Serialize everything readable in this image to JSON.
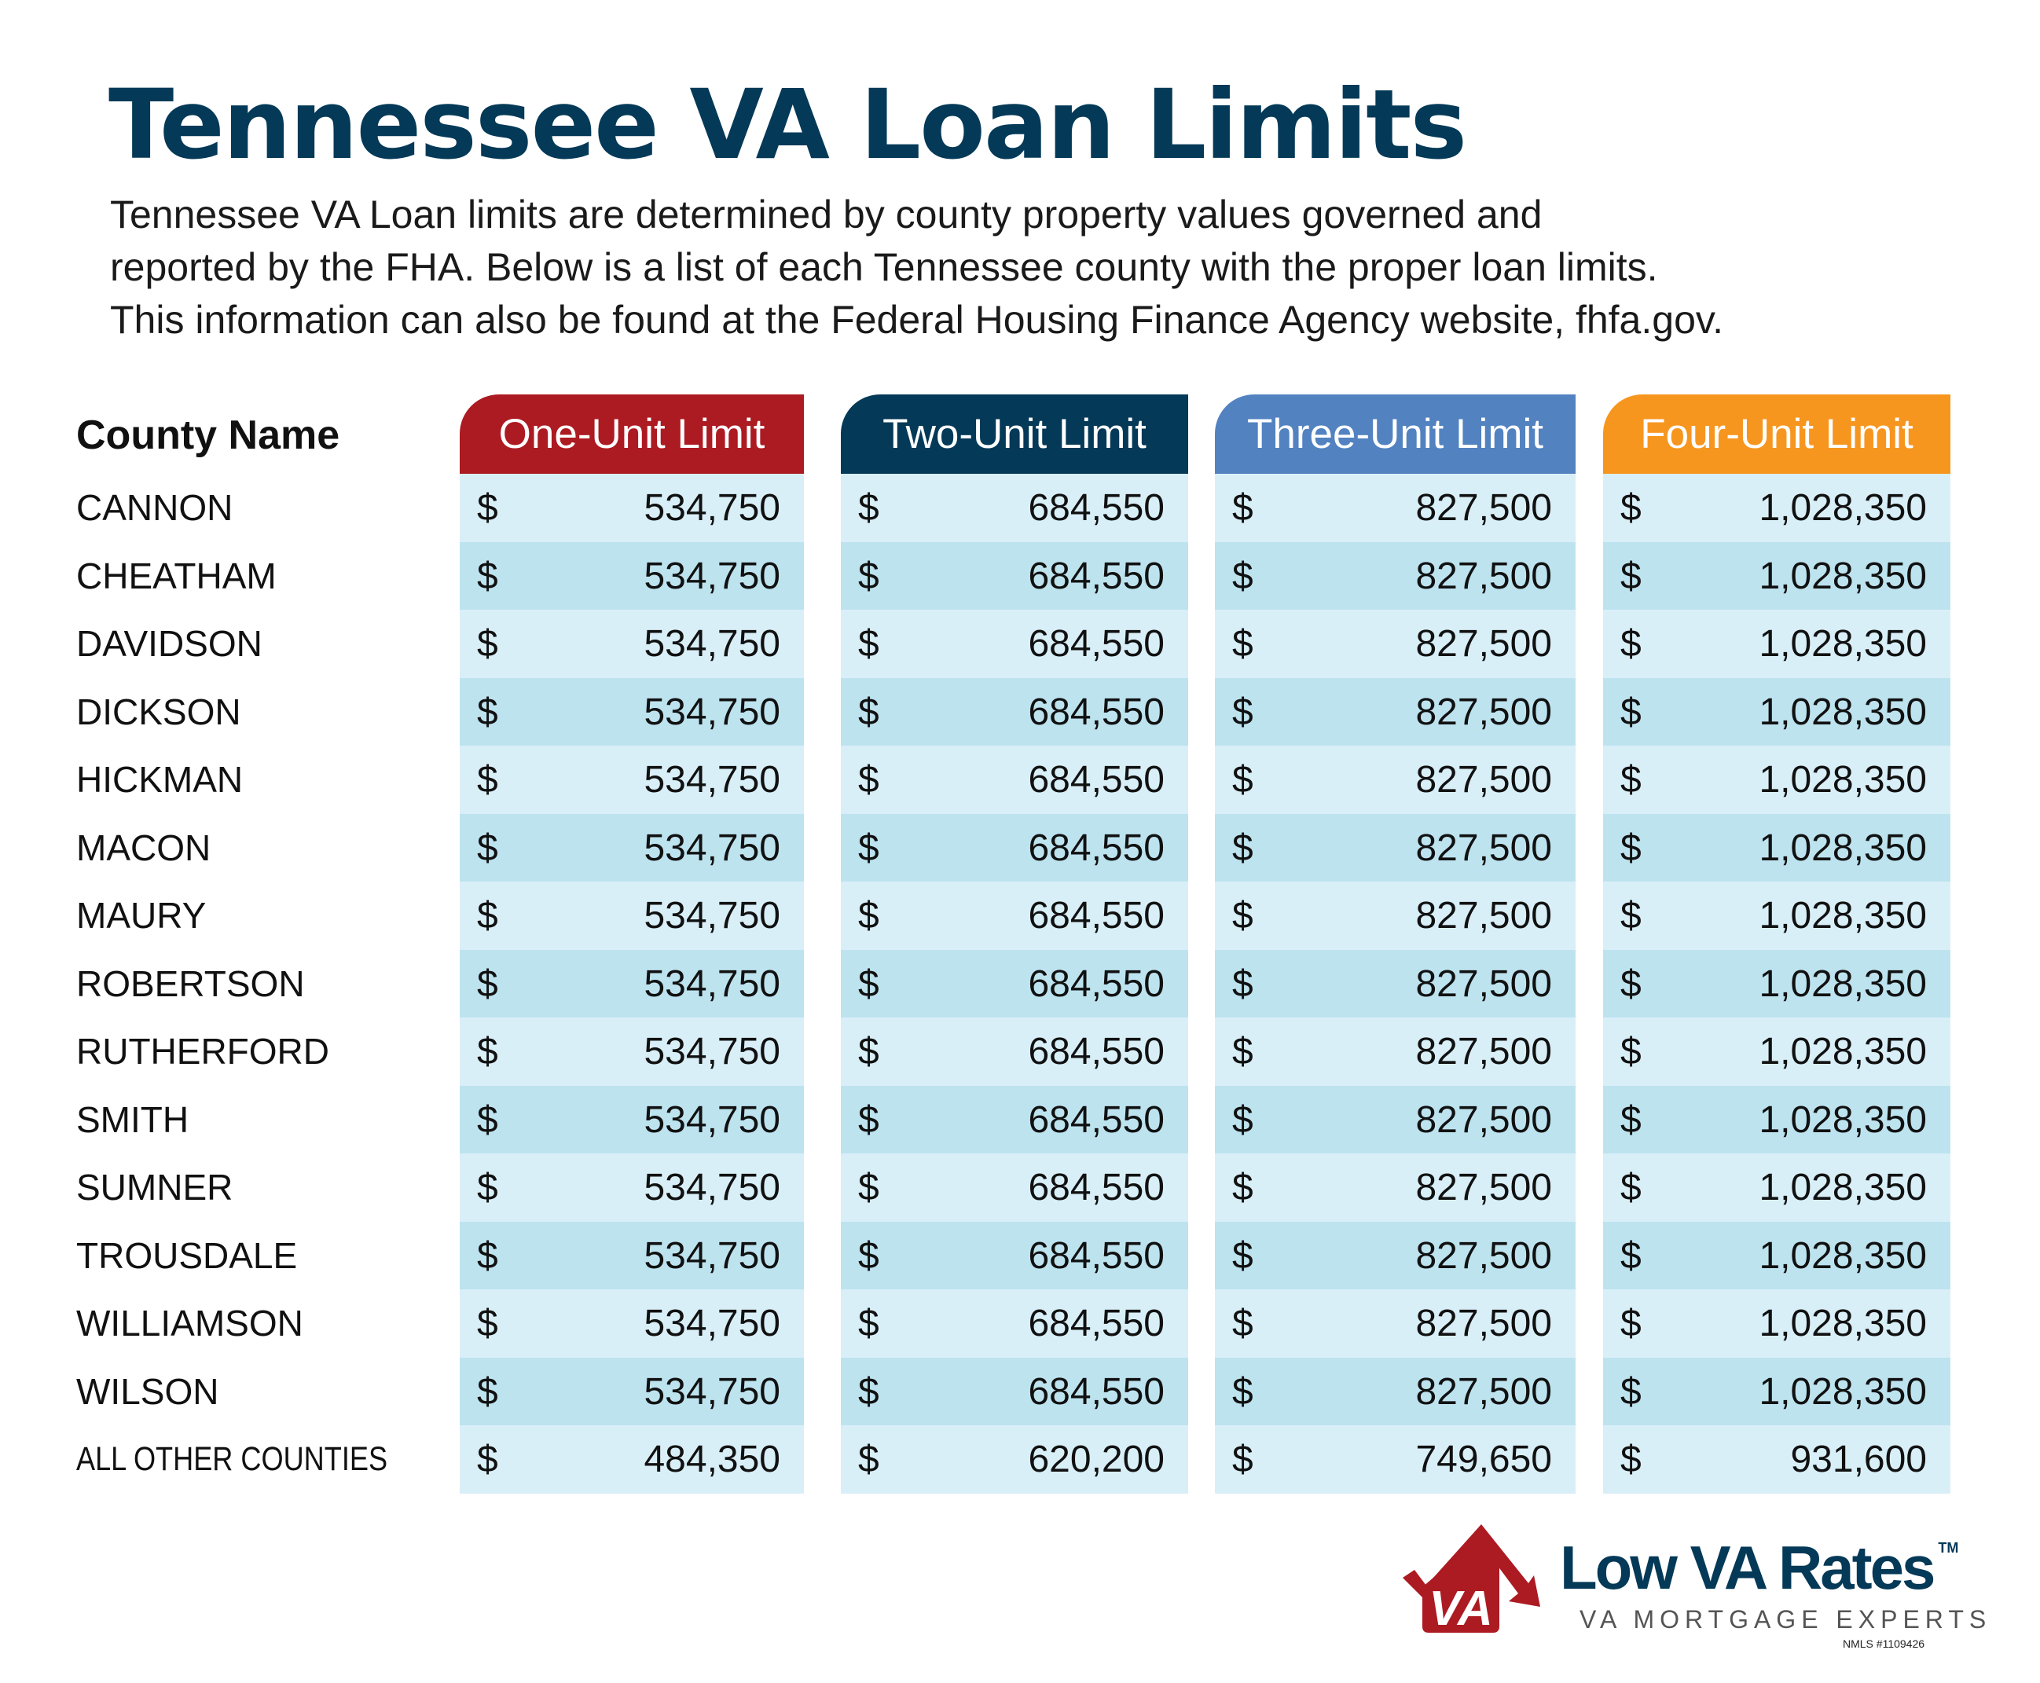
{
  "title": "Tennessee VA Loan Limits",
  "subtitle_lines": [
    "Tennessee VA Loan limits are determined by county property values governed and",
    "reported by the FHA. Below is a list of each Tennessee county with the proper loan limits.",
    "This information can also be found at the Federal Housing Finance Agency website, fhfa.gov."
  ],
  "table": {
    "county_header": "County Name",
    "columns": [
      {
        "label": "One-Unit Limit",
        "color": "#ac1a22"
      },
      {
        "label": "Two-Unit Limit",
        "color": "#043957"
      },
      {
        "label": "Three-Unit Limit",
        "color": "#5282c0"
      },
      {
        "label": "Four-Unit Limit",
        "color": "#f7961f"
      }
    ],
    "currency": "$",
    "row_colors": [
      "#d9eff8",
      "#bde3ef"
    ],
    "rows": [
      {
        "county": "CANNON",
        "values": [
          "534,750",
          "684,550",
          "827,500",
          "1,028,350"
        ]
      },
      {
        "county": "CHEATHAM",
        "values": [
          "534,750",
          "684,550",
          "827,500",
          "1,028,350"
        ]
      },
      {
        "county": "DAVIDSON",
        "values": [
          "534,750",
          "684,550",
          "827,500",
          "1,028,350"
        ]
      },
      {
        "county": "DICKSON",
        "values": [
          "534,750",
          "684,550",
          "827,500",
          "1,028,350"
        ]
      },
      {
        "county": "HICKMAN",
        "values": [
          "534,750",
          "684,550",
          "827,500",
          "1,028,350"
        ]
      },
      {
        "county": "MACON",
        "values": [
          "534,750",
          "684,550",
          "827,500",
          "1,028,350"
        ]
      },
      {
        "county": "MAURY",
        "values": [
          "534,750",
          "684,550",
          "827,500",
          "1,028,350"
        ]
      },
      {
        "county": "ROBERTSON",
        "values": [
          "534,750",
          "684,550",
          "827,500",
          "1,028,350"
        ]
      },
      {
        "county": "RUTHERFORD",
        "values": [
          "534,750",
          "684,550",
          "827,500",
          "1,028,350"
        ]
      },
      {
        "county": "SMITH",
        "values": [
          "534,750",
          "684,550",
          "827,500",
          "1,028,350"
        ]
      },
      {
        "county": "SUMNER",
        "values": [
          "534,750",
          "684,550",
          "827,500",
          "1,028,350"
        ]
      },
      {
        "county": "TROUSDALE",
        "values": [
          "534,750",
          "684,550",
          "827,500",
          "1,028,350"
        ]
      },
      {
        "county": "WILLIAMSON",
        "values": [
          "534,750",
          "684,550",
          "827,500",
          "1,028,350"
        ]
      },
      {
        "county": "WILSON",
        "values": [
          "534,750",
          "684,550",
          "827,500",
          "1,028,350"
        ]
      },
      {
        "county": "ALL OTHER COUNTIES",
        "values": [
          "484,350",
          "620,200",
          "749,650",
          "931,600"
        ]
      }
    ]
  },
  "logo": {
    "mark_text": "VA",
    "brand": "Low VA Rates",
    "trademark": "TM",
    "tagline": "VA MORTGAGE EXPERTS",
    "nmls": "NMLS #1109426"
  }
}
